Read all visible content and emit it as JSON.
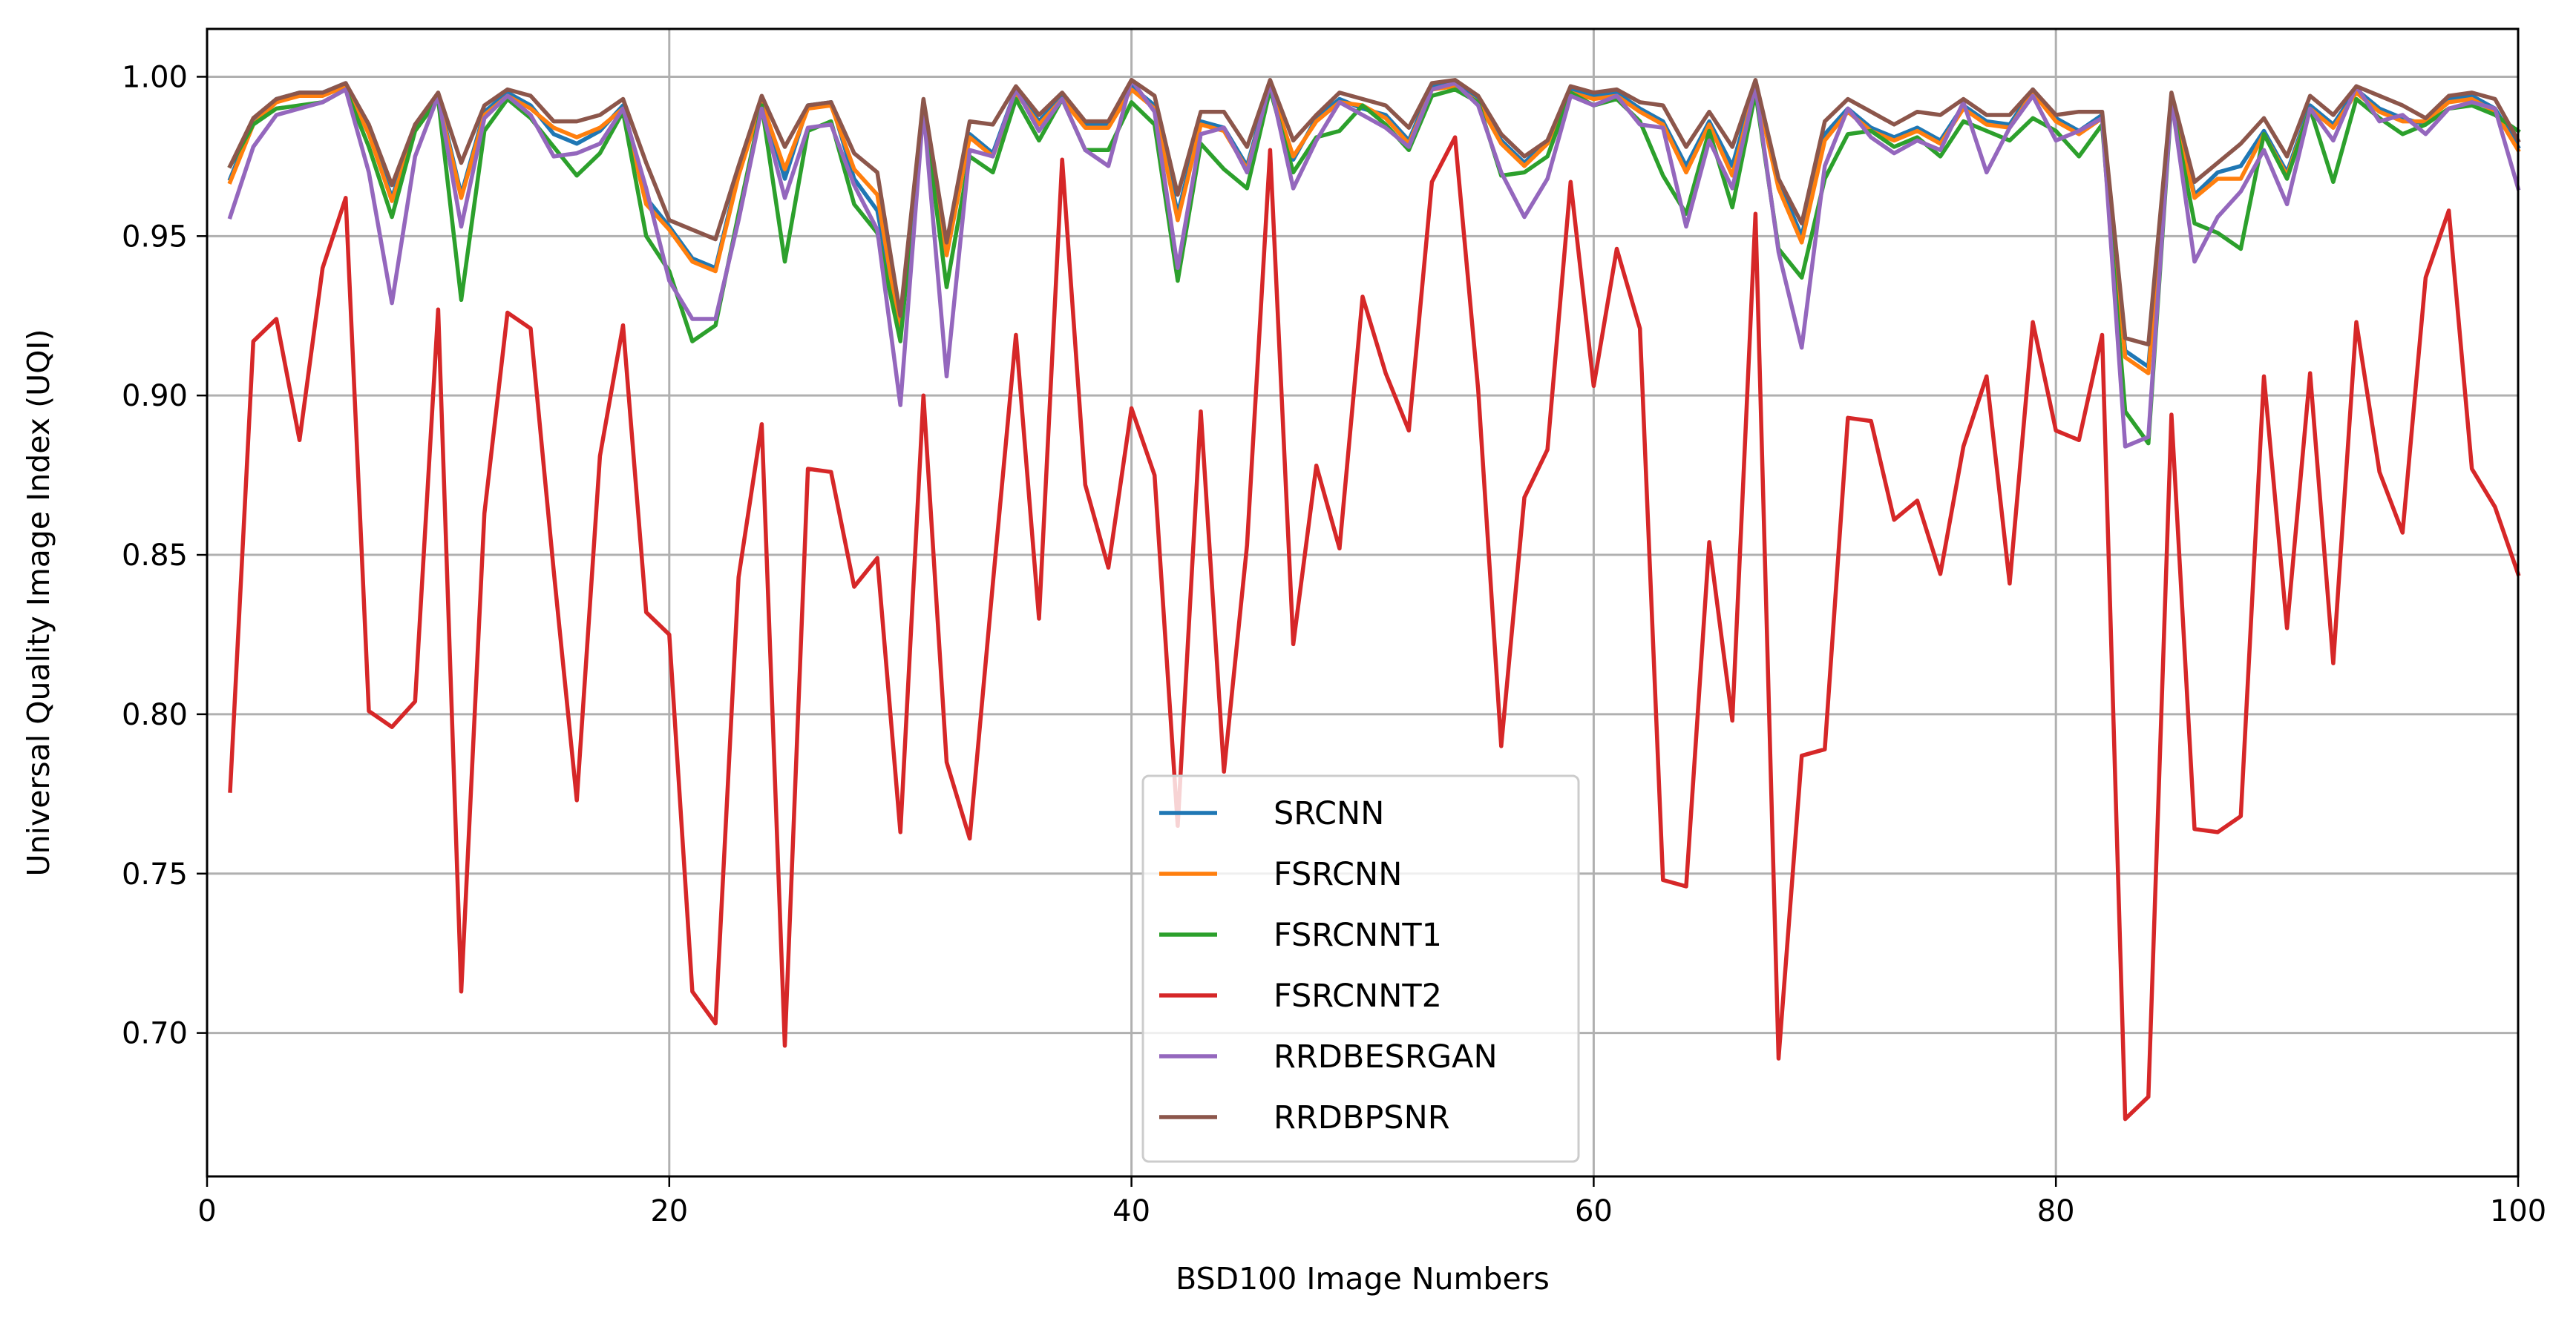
{
  "chart_data": {
    "type": "line",
    "xlabel": "BSD100 Image Numbers",
    "ylabel": "Universal Quality Image Index (UQI)",
    "xlim": [
      0,
      100
    ],
    "ylim": [
      0.655,
      1.015
    ],
    "x_ticks": [
      "0",
      "20",
      "40",
      "60",
      "80",
      "100"
    ],
    "y_ticks": [
      "0.70",
      "0.75",
      "0.80",
      "0.85",
      "0.90",
      "0.95",
      "1.00"
    ],
    "grid": true,
    "legend_position": "bottom-center",
    "x_start": 1,
    "series": [
      {
        "name": "SRCNN",
        "color": "#1f77b4",
        "values": [
          0.968,
          0.986,
          0.993,
          0.995,
          0.995,
          0.998,
          0.983,
          0.962,
          0.984,
          0.994,
          0.963,
          0.989,
          0.995,
          0.991,
          0.982,
          0.979,
          0.983,
          0.991,
          0.962,
          0.953,
          0.943,
          0.94,
          0.97,
          0.993,
          0.968,
          0.991,
          0.992,
          0.968,
          0.958,
          0.92,
          0.992,
          0.945,
          0.982,
          0.976,
          0.996,
          0.986,
          0.994,
          0.985,
          0.985,
          0.997,
          0.991,
          0.957,
          0.986,
          0.984,
          0.972,
          0.998,
          0.974,
          0.987,
          0.993,
          0.99,
          0.988,
          0.98,
          0.997,
          0.998,
          0.993,
          0.98,
          0.973,
          0.98,
          0.996,
          0.994,
          0.995,
          0.99,
          0.986,
          0.972,
          0.986,
          0.972,
          0.998,
          0.967,
          0.95,
          0.982,
          0.99,
          0.984,
          0.981,
          0.984,
          0.98,
          0.991,
          0.986,
          0.985,
          0.996,
          0.987,
          0.983,
          0.988,
          0.914,
          0.909,
          0.994,
          0.963,
          0.97,
          0.972,
          0.983,
          0.97,
          0.991,
          0.985,
          0.996,
          0.99,
          0.987,
          0.985,
          0.993,
          0.994,
          0.99,
          0.978
        ]
      },
      {
        "name": "FSRCNN",
        "color": "#ff7f0e",
        "values": [
          0.967,
          0.985,
          0.992,
          0.994,
          0.994,
          0.997,
          0.982,
          0.961,
          0.983,
          0.993,
          0.962,
          0.988,
          0.994,
          0.99,
          0.984,
          0.981,
          0.984,
          0.99,
          0.96,
          0.952,
          0.942,
          0.939,
          0.969,
          0.992,
          0.971,
          0.99,
          0.991,
          0.971,
          0.963,
          0.919,
          0.991,
          0.944,
          0.981,
          0.975,
          0.995,
          0.985,
          0.993,
          0.984,
          0.984,
          0.996,
          0.99,
          0.955,
          0.985,
          0.983,
          0.971,
          0.997,
          0.975,
          0.986,
          0.992,
          0.991,
          0.987,
          0.979,
          0.996,
          0.997,
          0.992,
          0.979,
          0.972,
          0.979,
          0.995,
          0.993,
          0.994,
          0.989,
          0.985,
          0.97,
          0.985,
          0.969,
          0.997,
          0.965,
          0.948,
          0.98,
          0.989,
          0.983,
          0.98,
          0.983,
          0.979,
          0.99,
          0.985,
          0.984,
          0.995,
          0.986,
          0.982,
          0.987,
          0.912,
          0.907,
          0.993,
          0.962,
          0.968,
          0.968,
          0.982,
          0.969,
          0.99,
          0.984,
          0.995,
          0.989,
          0.986,
          0.986,
          0.992,
          0.993,
          0.989,
          0.977
        ]
      },
      {
        "name": "FSRCNNT1",
        "color": "#2ca02c",
        "values": [
          0.972,
          0.985,
          0.99,
          0.991,
          0.992,
          0.996,
          0.978,
          0.956,
          0.983,
          0.993,
          0.93,
          0.983,
          0.993,
          0.987,
          0.978,
          0.969,
          0.976,
          0.989,
          0.95,
          0.939,
          0.917,
          0.922,
          0.957,
          0.991,
          0.942,
          0.983,
          0.986,
          0.96,
          0.951,
          0.917,
          0.99,
          0.934,
          0.975,
          0.97,
          0.993,
          0.98,
          0.993,
          0.977,
          0.977,
          0.992,
          0.985,
          0.936,
          0.979,
          0.971,
          0.965,
          0.996,
          0.97,
          0.981,
          0.983,
          0.991,
          0.985,
          0.977,
          0.994,
          0.996,
          0.992,
          0.969,
          0.97,
          0.975,
          0.995,
          0.991,
          0.993,
          0.986,
          0.969,
          0.957,
          0.983,
          0.959,
          0.995,
          0.946,
          0.937,
          0.968,
          0.982,
          0.983,
          0.978,
          0.981,
          0.975,
          0.986,
          0.983,
          0.98,
          0.987,
          0.983,
          0.975,
          0.985,
          0.895,
          0.885,
          0.992,
          0.954,
          0.951,
          0.946,
          0.982,
          0.968,
          0.99,
          0.967,
          0.993,
          0.987,
          0.982,
          0.985,
          0.99,
          0.991,
          0.988,
          0.983
        ]
      },
      {
        "name": "FSRCNNT2",
        "color": "#d62728",
        "values": [
          0.776,
          0.917,
          0.924,
          0.886,
          0.94,
          0.962,
          0.801,
          0.796,
          0.804,
          0.927,
          0.713,
          0.863,
          0.926,
          0.921,
          0.845,
          0.773,
          0.881,
          0.922,
          0.832,
          0.825,
          0.713,
          0.703,
          0.843,
          0.891,
          0.696,
          0.877,
          0.876,
          0.84,
          0.849,
          0.763,
          0.9,
          0.785,
          0.761,
          0.841,
          0.919,
          0.83,
          0.974,
          0.872,
          0.846,
          0.896,
          0.875,
          0.765,
          0.895,
          0.782,
          0.853,
          0.977,
          0.822,
          0.878,
          0.852,
          0.931,
          0.907,
          0.889,
          0.967,
          0.981,
          0.902,
          0.79,
          0.868,
          0.883,
          0.967,
          0.903,
          0.946,
          0.921,
          0.748,
          0.746,
          0.854,
          0.798,
          0.957,
          0.692,
          0.787,
          0.789,
          0.893,
          0.892,
          0.861,
          0.867,
          0.844,
          0.884,
          0.906,
          0.841,
          0.923,
          0.889,
          0.886,
          0.919,
          0.673,
          0.68,
          0.894,
          0.764,
          0.763,
          0.768,
          0.906,
          0.827,
          0.907,
          0.816,
          0.923,
          0.876,
          0.857,
          0.937,
          0.958,
          0.877,
          0.865,
          0.844
        ]
      },
      {
        "name": "RRDBESRGAN",
        "color": "#9467bd",
        "values": [
          0.956,
          0.978,
          0.988,
          0.99,
          0.992,
          0.996,
          0.97,
          0.929,
          0.975,
          0.994,
          0.953,
          0.987,
          0.994,
          0.988,
          0.975,
          0.976,
          0.979,
          0.99,
          0.965,
          0.936,
          0.924,
          0.924,
          0.955,
          0.99,
          0.962,
          0.984,
          0.985,
          0.966,
          0.952,
          0.897,
          0.99,
          0.906,
          0.977,
          0.975,
          0.996,
          0.983,
          0.993,
          0.977,
          0.972,
          0.999,
          0.989,
          0.94,
          0.982,
          0.984,
          0.97,
          0.998,
          0.965,
          0.98,
          0.992,
          0.988,
          0.984,
          0.978,
          0.996,
          0.998,
          0.991,
          0.97,
          0.956,
          0.968,
          0.994,
          0.991,
          0.994,
          0.985,
          0.984,
          0.953,
          0.98,
          0.965,
          0.997,
          0.945,
          0.915,
          0.972,
          0.99,
          0.981,
          0.976,
          0.98,
          0.977,
          0.992,
          0.97,
          0.984,
          0.994,
          0.98,
          0.983,
          0.987,
          0.884,
          0.887,
          0.993,
          0.942,
          0.956,
          0.964,
          0.977,
          0.96,
          0.99,
          0.98,
          0.997,
          0.986,
          0.988,
          0.982,
          0.99,
          0.992,
          0.99,
          0.965
        ]
      },
      {
        "name": "RRDBPSNR",
        "color": "#8c564b",
        "values": [
          0.972,
          0.987,
          0.993,
          0.995,
          0.995,
          0.998,
          0.985,
          0.966,
          0.985,
          0.995,
          0.973,
          0.991,
          0.996,
          0.994,
          0.986,
          0.986,
          0.988,
          0.993,
          0.973,
          0.955,
          0.952,
          0.949,
          0.972,
          0.994,
          0.978,
          0.991,
          0.992,
          0.976,
          0.97,
          0.925,
          0.993,
          0.948,
          0.986,
          0.985,
          0.997,
          0.988,
          0.995,
          0.986,
          0.986,
          0.999,
          0.994,
          0.963,
          0.989,
          0.989,
          0.978,
          0.999,
          0.98,
          0.988,
          0.995,
          0.993,
          0.991,
          0.984,
          0.998,
          0.999,
          0.994,
          0.982,
          0.975,
          0.98,
          0.997,
          0.995,
          0.996,
          0.992,
          0.991,
          0.978,
          0.989,
          0.978,
          0.999,
          0.968,
          0.954,
          0.986,
          0.993,
          0.989,
          0.985,
          0.989,
          0.988,
          0.993,
          0.988,
          0.988,
          0.996,
          0.988,
          0.989,
          0.989,
          0.918,
          0.916,
          0.995,
          0.967,
          0.973,
          0.979,
          0.987,
          0.975,
          0.994,
          0.988,
          0.997,
          0.994,
          0.991,
          0.987,
          0.994,
          0.995,
          0.993,
          0.98
        ]
      }
    ]
  }
}
